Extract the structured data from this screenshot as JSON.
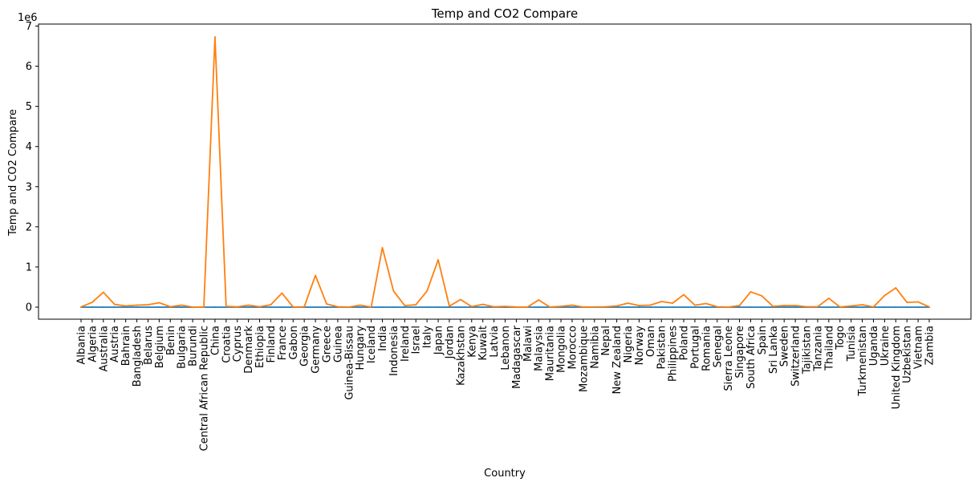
{
  "chart_data": {
    "type": "line",
    "title": "Temp and CO2 Compare",
    "xlabel": "Country",
    "ylabel": "Temp and CO2 Compare",
    "y_offset_text": "1e6",
    "y_scale": 1000000,
    "ylim": [
      -300000,
      7050000
    ],
    "yticks": [
      0,
      1000000,
      2000000,
      3000000,
      4000000,
      5000000,
      6000000,
      7000000
    ],
    "ytick_labels": [
      "0",
      "1",
      "2",
      "3",
      "4",
      "5",
      "6",
      "7"
    ],
    "grid": false,
    "legend": "none",
    "categories": [
      "Albania",
      "Algeria",
      "Australia",
      "Austria",
      "Bahrain",
      "Bangladesh",
      "Belarus",
      "Belgium",
      "Benin",
      "Bulgaria",
      "Burundi",
      "Central African Republic",
      "China",
      "Croatia",
      "Cyprus",
      "Denmark",
      "Ethiopia",
      "Finland",
      "France",
      "Gabon",
      "Georgia",
      "Germany",
      "Greece",
      "Guinea",
      "Guinea-Bissau",
      "Hungary",
      "Iceland",
      "India",
      "Indonesia",
      "Ireland",
      "Israel",
      "Italy",
      "Japan",
      "Jordan",
      "Kazakhstan",
      "Kenya",
      "Kuwait",
      "Latvia",
      "Lebanon",
      "Madagascar",
      "Malawi",
      "Malaysia",
      "Mauritania",
      "Mongolia",
      "Morocco",
      "Mozambique",
      "Namibia",
      "Nepal",
      "New Zealand",
      "Nigeria",
      "Norway",
      "Oman",
      "Pakistan",
      "Philippines",
      "Poland",
      "Portugal",
      "Romania",
      "Senegal",
      "Sierra Leone",
      "Singapore",
      "South Africa",
      "Spain",
      "Sri Lanka",
      "Sweden",
      "Switzerland",
      "Tajikistan",
      "Tanzania",
      "Thailand",
      "Togo",
      "Tunisia",
      "Turkmenistan",
      "Uganda",
      "Ukraine",
      "United Kingdom",
      "Uzbekistan",
      "Vietnam",
      "Zambia"
    ],
    "series": [
      {
        "color": "#1f77b4",
        "values": [
          15,
          25,
          22,
          10,
          28,
          27,
          8,
          11,
          28,
          12,
          21,
          26,
          8,
          13,
          20,
          9,
          23,
          2,
          12,
          26,
          8,
          10,
          18,
          27,
          27,
          11,
          3,
          25,
          27,
          10,
          20,
          14,
          15,
          18,
          7,
          20,
          27,
          7,
          18,
          25,
          22,
          27,
          28,
          1,
          18,
          24,
          21,
          16,
          11,
          28,
          2,
          27,
          22,
          28,
          8,
          16,
          10,
          29,
          27,
          28,
          18,
          15,
          28,
          4,
          7,
          3,
          23,
          28,
          27,
          20,
          17,
          22,
          8,
          9,
          15,
          26,
          22
        ]
      },
      {
        "color": "#ff7f0e",
        "values": [
          5000,
          120000,
          370000,
          70000,
          30000,
          50000,
          60000,
          110000,
          10000,
          50000,
          2000,
          1000,
          6730000,
          20000,
          8000,
          50000,
          10000,
          60000,
          350000,
          5000,
          10000,
          790000,
          80000,
          10000,
          1000,
          50000,
          2000,
          1480000,
          400000,
          40000,
          60000,
          400000,
          1180000,
          25000,
          190000,
          15000,
          70000,
          8000,
          20000,
          3000,
          1000,
          180000,
          3000,
          20000,
          50000,
          3000,
          4000,
          10000,
          30000,
          100000,
          40000,
          50000,
          140000,
          100000,
          310000,
          50000,
          90000,
          10000,
          1000,
          40000,
          380000,
          280000,
          20000,
          40000,
          40000,
          10000,
          10000,
          220000,
          3000,
          30000,
          60000,
          5000,
          290000,
          480000,
          120000,
          130000,
          5000
        ]
      }
    ]
  }
}
